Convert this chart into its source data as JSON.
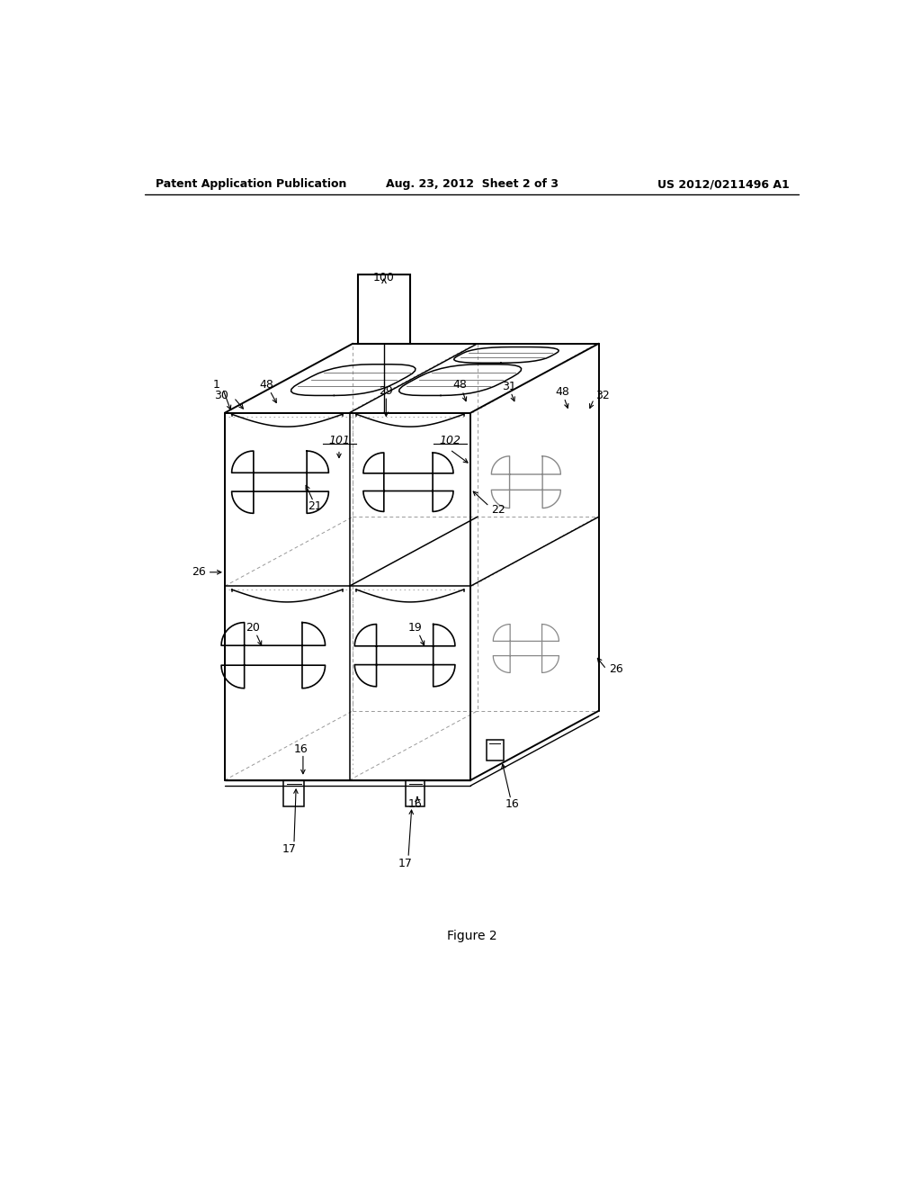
{
  "bg_color": "#ffffff",
  "line_color": "#000000",
  "dashed_color": "#999999",
  "header_left": "Patent Application Publication",
  "header_center": "Aug. 23, 2012  Sheet 2 of 3",
  "header_right": "US 2012/0211496 A1",
  "figure_label": "Figure 2",
  "lw_main": 1.4,
  "lw_inner": 1.1,
  "lw_dash": 0.7,
  "fontsize_label": 9,
  "fontsize_header": 9,
  "fontsize_fig": 10
}
